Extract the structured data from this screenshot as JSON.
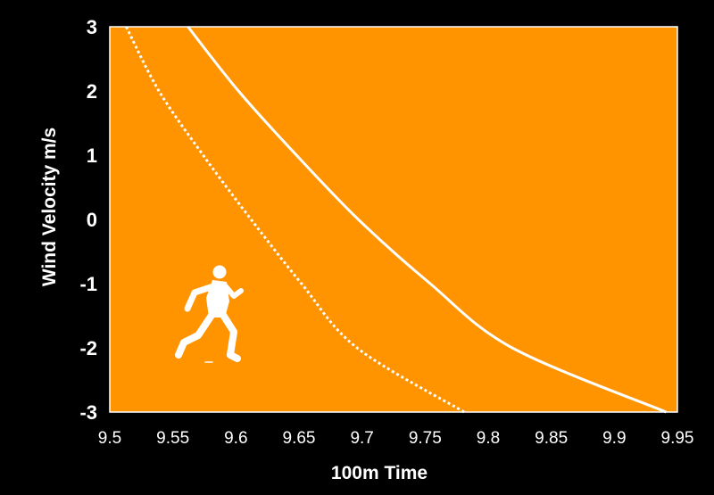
{
  "chart_data": {
    "type": "line",
    "title": "",
    "xlabel": "100m Time",
    "ylabel": "Wind Velocity m/s",
    "xlim": [
      9.5,
      9.95
    ],
    "ylim": [
      -3,
      3
    ],
    "x_ticks": [
      "9.5",
      "9.55",
      "9.6",
      "9.65",
      "9.7",
      "9.75",
      "9.8",
      "9.85",
      "9.9",
      "9.95"
    ],
    "y_ticks": [
      "3",
      "2",
      "1",
      "0",
      "-1",
      "-2",
      "-3"
    ],
    "grid": false,
    "legend": "none",
    "series": [
      {
        "style": "dotted",
        "points": [
          [
            9.513,
            3
          ],
          [
            9.539,
            2
          ],
          [
            9.574,
            1
          ],
          [
            9.612,
            0
          ],
          [
            9.652,
            -1
          ],
          [
            9.696,
            -2
          ],
          [
            9.781,
            -3
          ]
        ]
      },
      {
        "style": "solid",
        "points": [
          [
            9.562,
            3
          ],
          [
            9.602,
            2
          ],
          [
            9.648,
            1
          ],
          [
            9.697,
            0
          ],
          [
            9.754,
            -1
          ],
          [
            9.819,
            -2
          ],
          [
            9.941,
            -3
          ]
        ]
      }
    ],
    "colors": {
      "background": "#000000",
      "plot_area": "#ff9300",
      "line": "#ffffff",
      "text": "#ffffff"
    },
    "icons": [
      "sprinter-silhouette-icon"
    ]
  }
}
